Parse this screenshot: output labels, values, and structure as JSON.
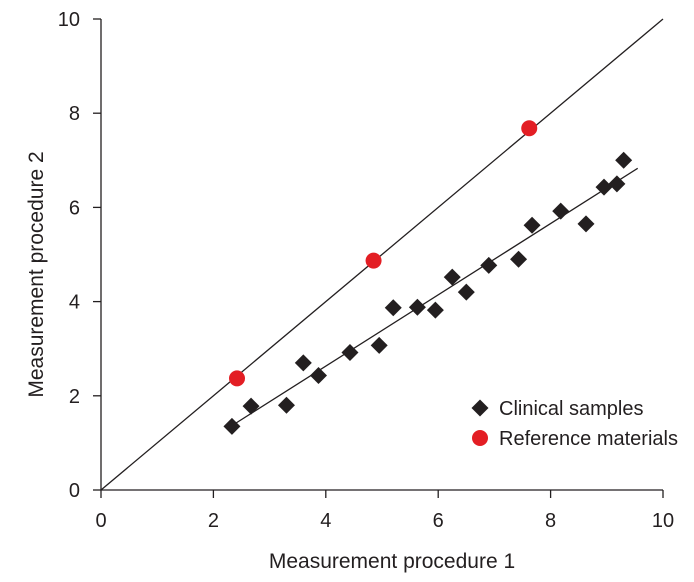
{
  "chart_data": {
    "type": "scatter",
    "xlabel": "Measurement procedure 1",
    "ylabel": "Measurement procedure 2",
    "xlim": [
      0,
      10
    ],
    "ylim": [
      0,
      10
    ],
    "xticks": [
      0,
      2,
      4,
      6,
      8,
      10
    ],
    "yticks": [
      0,
      2,
      4,
      6,
      8,
      10
    ],
    "grid": false,
    "legend_position": "bottom-right",
    "series": [
      {
        "name": "Clinical samples",
        "marker": "diamond",
        "color": "#231f20",
        "x": [
          2.33,
          2.67,
          3.3,
          3.6,
          3.87,
          4.43,
          4.95,
          5.2,
          5.63,
          5.95,
          6.25,
          6.5,
          6.9,
          7.43,
          7.67,
          8.18,
          8.63,
          8.95,
          9.18,
          9.3
        ],
        "y": [
          1.35,
          1.78,
          1.8,
          2.7,
          2.43,
          2.92,
          3.07,
          3.87,
          3.88,
          3.82,
          4.52,
          4.2,
          4.77,
          4.9,
          5.62,
          5.92,
          5.65,
          6.43,
          6.5,
          7.0
        ]
      },
      {
        "name": "Reference materials",
        "marker": "circle",
        "color": "#e31e24",
        "x": [
          2.42,
          4.85,
          7.62
        ],
        "y": [
          2.37,
          4.87,
          7.68
        ]
      }
    ],
    "lines": [
      {
        "kind": "identity",
        "x": [
          0,
          10
        ],
        "y": [
          0,
          10
        ]
      },
      {
        "kind": "regression",
        "x": [
          2.4,
          9.55
        ],
        "y": [
          1.42,
          6.83
        ]
      }
    ]
  }
}
